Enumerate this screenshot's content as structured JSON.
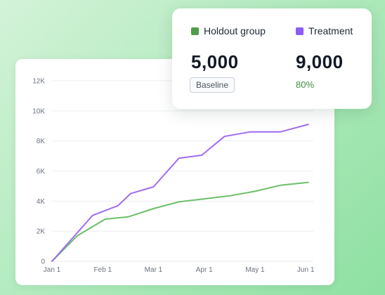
{
  "colors": {
    "holdout": "#6cbf6a",
    "holdout_swatch": "#4e9f4a",
    "treatment": "#a06cf0",
    "treatment_swatch": "#8b5cf6",
    "lift": "#3f8f3f",
    "grid": "#eceef1"
  },
  "stats": {
    "holdout": {
      "label": "Holdout group",
      "value": "5,000",
      "badge": "Baseline"
    },
    "treatment": {
      "label": "Treatment",
      "value": "9,000",
      "lift": "80%"
    }
  },
  "chart_data": {
    "type": "line",
    "title": "",
    "xlabel": "",
    "ylabel": "",
    "grid": true,
    "ylim": [
      0,
      12000
    ],
    "y_ticks": [
      0,
      2000,
      4000,
      6000,
      8000,
      10000,
      12000
    ],
    "y_tick_labels": [
      "0",
      "2K",
      "4K",
      "6K",
      "8K",
      "10K",
      "12K"
    ],
    "x_ticks": [
      0,
      1,
      2,
      3,
      4,
      5
    ],
    "x_tick_labels": [
      "Jan 1",
      "Feb 1",
      "Mar 1",
      "Apr 1",
      "May 1",
      "Jun 1"
    ],
    "xlim": [
      0,
      5.15
    ],
    "series": [
      {
        "name": "Holdout group",
        "x": [
          0,
          0.5,
          1.05,
          1.5,
          2.0,
          2.5,
          3.0,
          3.5,
          4.0,
          4.5,
          5.05
        ],
        "values": [
          0,
          1700,
          2800,
          2950,
          3500,
          3950,
          4150,
          4350,
          4650,
          5050,
          5250
        ]
      },
      {
        "name": "Treatment",
        "x": [
          0,
          0.8,
          1.3,
          1.55,
          2.0,
          2.5,
          2.95,
          3.4,
          3.9,
          4.5,
          5.05
        ],
        "values": [
          0,
          3050,
          3700,
          4500,
          4950,
          6850,
          7050,
          8300,
          8600,
          8600,
          9100
        ]
      }
    ]
  }
}
